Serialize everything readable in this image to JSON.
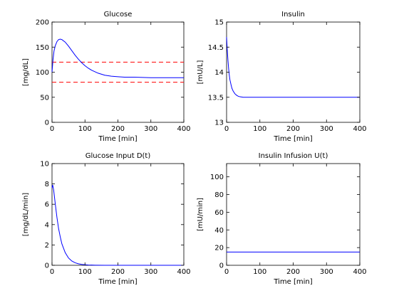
{
  "chart_data": [
    {
      "type": "line",
      "title": "Glucose",
      "xlabel": "Time [min]",
      "ylabel": "[mg/dL]",
      "xlim": [
        0,
        400
      ],
      "ylim": [
        0,
        200
      ],
      "xticks": [
        0,
        100,
        200,
        300,
        400
      ],
      "yticks": [
        0,
        50,
        100,
        150,
        200
      ],
      "grid": false,
      "series": [
        {
          "color": "#0000ff",
          "style": "solid",
          "x": [
            0,
            3,
            6,
            10,
            15,
            20,
            25,
            30,
            40,
            50,
            60,
            70,
            80,
            90,
            100,
            110,
            120,
            140,
            160,
            180,
            200,
            220,
            250,
            300,
            350,
            400
          ],
          "y": [
            100,
            125,
            142,
            153,
            161,
            165,
            166,
            165,
            160,
            152,
            143,
            134,
            126,
            119,
            113,
            108,
            104,
            98,
            94,
            92,
            91,
            90,
            90,
            89,
            89,
            89
          ]
        }
      ],
      "reference_lines": [
        {
          "y": 120,
          "color": "#ff0000",
          "style": "dashed"
        },
        {
          "y": 80,
          "color": "#ff0000",
          "style": "dashed"
        }
      ]
    },
    {
      "type": "line",
      "title": "Insulin",
      "xlabel": "Time [min]",
      "ylabel": "[mU/L]",
      "xlim": [
        0,
        400
      ],
      "ylim": [
        13,
        15
      ],
      "xticks": [
        0,
        100,
        200,
        300,
        400
      ],
      "yticks": [
        13,
        13.5,
        14,
        14.5,
        15
      ],
      "grid": false,
      "series": [
        {
          "color": "#0000ff",
          "style": "solid",
          "x": [
            0,
            2,
            4,
            6,
            8,
            10,
            13,
            16,
            20,
            25,
            30,
            35,
            40,
            50,
            60,
            80,
            100,
            200,
            300,
            400
          ],
          "y": [
            14.7,
            14.45,
            14.25,
            14.08,
            13.95,
            13.85,
            13.76,
            13.68,
            13.62,
            13.57,
            13.54,
            13.52,
            13.51,
            13.5,
            13.5,
            13.5,
            13.5,
            13.5,
            13.5,
            13.5
          ]
        }
      ]
    },
    {
      "type": "line",
      "title": "Glucose Input D(t)",
      "xlabel": "Time [min]",
      "ylabel": "[mg/dL/min]",
      "xlim": [
        0,
        400
      ],
      "ylim": [
        0,
        10
      ],
      "xticks": [
        0,
        100,
        200,
        300,
        400
      ],
      "yticks": [
        0,
        2,
        4,
        6,
        8,
        10
      ],
      "grid": false,
      "series": [
        {
          "color": "#0000ff",
          "style": "solid",
          "x": [
            0,
            2,
            5,
            10,
            15,
            20,
            25,
            30,
            40,
            50,
            60,
            70,
            80,
            90,
            100,
            110,
            130,
            160,
            200,
            300,
            400
          ],
          "y": [
            7.6,
            7.9,
            7.4,
            6.0,
            4.7,
            3.6,
            2.8,
            2.1,
            1.25,
            0.72,
            0.42,
            0.25,
            0.15,
            0.09,
            0.05,
            0.03,
            0.01,
            0.0,
            0.0,
            0.0,
            0.0
          ]
        }
      ]
    },
    {
      "type": "line",
      "title": "Insulin Infusion U(t)",
      "xlabel": "Time [min]",
      "ylabel": "[mU/min]",
      "xlim": [
        0,
        400
      ],
      "ylim": [
        0,
        115
      ],
      "xticks": [
        0,
        100,
        200,
        300,
        400
      ],
      "yticks": [
        0,
        20,
        40,
        60,
        80,
        100
      ],
      "grid": false,
      "series": [
        {
          "color": "#0000ff",
          "style": "solid",
          "x": [
            0,
            400
          ],
          "y": [
            15,
            15
          ]
        }
      ]
    }
  ]
}
